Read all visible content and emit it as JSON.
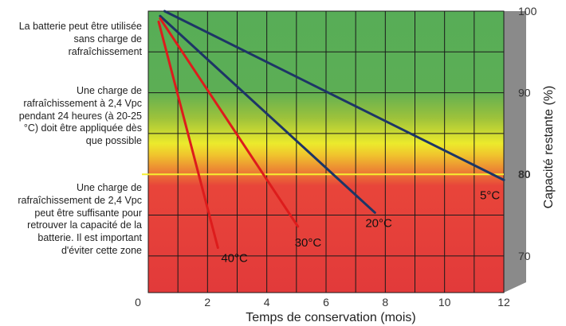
{
  "notes": [
    "La batterie peut être utilisée sans charge de rafraîchissement",
    "Une charge de rafraîchissement à 2,4 Vpc pendant 24 heures (à 20-25 °C) doit être appliquée dès que possible",
    "Une charge de rafraîchissement de 2,4 Vpc peut être suffisante pour retrouver la capacité de la batterie. Il est important d'éviter cette zone"
  ],
  "chart_data": {
    "type": "line",
    "xlabel": "Temps de conservation (mois)",
    "ylabel": "Capacité restante (%)",
    "xlim": [
      0,
      12
    ],
    "ylim": [
      65.5,
      100
    ],
    "x_ticks": [
      "0",
      "2",
      "4",
      "6",
      "8",
      "10",
      "12"
    ],
    "y_ticks": [
      "100",
      "90",
      "80",
      "70"
    ],
    "highlight_y": 80,
    "zones": [
      {
        "from": 86,
        "to": 100,
        "color": "#55ac55"
      },
      {
        "from": 80,
        "to": 86,
        "color": "#f2e82a"
      },
      {
        "from": 65.5,
        "to": 80,
        "color": "#e23a3a"
      }
    ],
    "series": [
      {
        "name": "5°C",
        "color": "#1d3566",
        "x": [
          0.55,
          12.0
        ],
        "y": [
          100,
          79.3
        ]
      },
      {
        "name": "20°C",
        "color": "#1d3566",
        "x": [
          0.4,
          7.65
        ],
        "y": [
          99.4,
          75.3
        ]
      },
      {
        "name": "30°C",
        "color": "#dd1c1c",
        "x": [
          0.4,
          5.05
        ],
        "y": [
          99.1,
          73.6
        ]
      },
      {
        "name": "40°C",
        "color": "#dd1c1c",
        "x": [
          0.35,
          2.35
        ],
        "y": [
          98.7,
          71.0
        ]
      }
    ]
  }
}
